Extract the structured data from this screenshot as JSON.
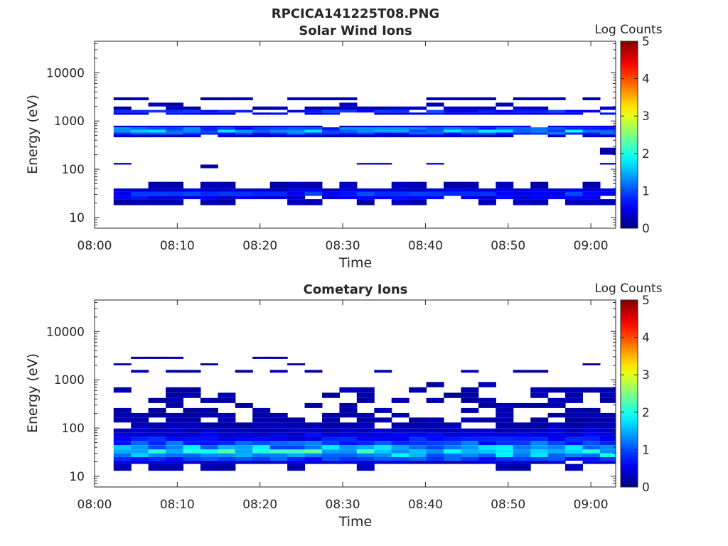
{
  "figure_title": "RPCICA141225T08.PNG",
  "colors": {
    "axis": "#262626",
    "background": "#ffffff",
    "colormap": "jet"
  },
  "chart_data": [
    {
      "type": "heatmap",
      "title": "Solar Wind Ions",
      "xlabel": "Time",
      "ylabel": "Energy (eV)",
      "xtick_labels": [
        "08:00",
        "08:10",
        "08:20",
        "08:30",
        "08:40",
        "08:50",
        "09:00"
      ],
      "xlim": [
        "08:00",
        "09:03"
      ],
      "ytick_labels": [
        "10",
        "100",
        "1000",
        "10000"
      ],
      "ylim": [
        6,
        45000
      ],
      "yscale": "log",
      "colorbar": {
        "label": "Log Counts",
        "ticks": [
          "0",
          "1",
          "2",
          "3",
          "4",
          "5"
        ],
        "range": [
          0,
          5
        ]
      },
      "time_bins": {
        "start_min": 2.3,
        "step_min": 2.1,
        "count": 29
      },
      "bands": [
        {
          "e_min": 18,
          "e_max": 24,
          "value": 0.25,
          "presence": 0.75
        },
        {
          "e_min": 24,
          "e_max": 28,
          "value": 0.55,
          "presence": 0.95
        },
        {
          "e_min": 28,
          "e_max": 34,
          "value": 0.75,
          "presence": 1.0
        },
        {
          "e_min": 34,
          "e_max": 40,
          "value": 0.45,
          "presence": 0.95
        },
        {
          "e_min": 40,
          "e_max": 55,
          "value": 0.25,
          "presence": 0.55
        },
        {
          "e_min": 105,
          "e_max": 125,
          "value": 0.25,
          "presence": 0.15
        },
        {
          "e_min": 125,
          "e_max": 135,
          "value": 0.3,
          "presence": 0.12
        },
        {
          "e_min": 200,
          "e_max": 280,
          "value": 0.3,
          "presence": 0.04
        },
        {
          "e_min": 460,
          "e_max": 520,
          "value": 0.35,
          "presence": 0.85
        },
        {
          "e_min": 520,
          "e_max": 580,
          "value": 0.9,
          "presence": 1.0
        },
        {
          "e_min": 580,
          "e_max": 660,
          "value": 1.4,
          "presence": 1.0
        },
        {
          "e_min": 660,
          "e_max": 740,
          "value": 1.0,
          "presence": 1.0
        },
        {
          "e_min": 740,
          "e_max": 800,
          "value": 0.45,
          "presence": 0.95
        },
        {
          "e_min": 1350,
          "e_max": 1500,
          "value": 0.55,
          "presence": 0.85
        },
        {
          "e_min": 1500,
          "e_max": 1700,
          "value": 0.75,
          "presence": 0.8
        },
        {
          "e_min": 1700,
          "e_max": 2000,
          "value": 0.3,
          "presence": 0.4
        },
        {
          "e_min": 2000,
          "e_max": 2400,
          "value": 0.25,
          "presence": 0.3
        },
        {
          "e_min": 2700,
          "e_max": 3100,
          "value": 0.25,
          "presence": 0.55
        }
      ]
    },
    {
      "type": "heatmap",
      "title": "Cometary Ions",
      "xlabel": "Time",
      "ylabel": "Energy (eV)",
      "xtick_labels": [
        "08:00",
        "08:10",
        "08:20",
        "08:30",
        "08:40",
        "08:50",
        "09:00"
      ],
      "xlim": [
        "08:00",
        "09:03"
      ],
      "ytick_labels": [
        "10",
        "100",
        "1000",
        "10000"
      ],
      "ylim": [
        6,
        45000
      ],
      "yscale": "log",
      "colorbar": {
        "label": "Log Counts",
        "ticks": [
          "0",
          "1",
          "2",
          "3",
          "4",
          "5"
        ],
        "range": [
          0,
          5
        ]
      },
      "time_bins": {
        "start_min": 2.3,
        "step_min": 2.1,
        "count": 29
      },
      "bands": [
        {
          "e_min": 8,
          "e_max": 13,
          "value": 0.2,
          "presence": 0.05
        },
        {
          "e_min": 13,
          "e_max": 18,
          "value": 0.25,
          "presence": 0.4
        },
        {
          "e_min": 18,
          "e_max": 21,
          "value": 0.35,
          "presence": 0.95
        },
        {
          "e_min": 21,
          "e_max": 25,
          "value": 0.85,
          "presence": 1.0
        },
        {
          "e_min": 25,
          "e_max": 30,
          "value": 1.5,
          "presence": 1.0
        },
        {
          "e_min": 30,
          "e_max": 36,
          "value": 1.8,
          "presence": 1.0
        },
        {
          "e_min": 36,
          "e_max": 44,
          "value": 1.4,
          "presence": 1.0
        },
        {
          "e_min": 44,
          "e_max": 54,
          "value": 0.95,
          "presence": 1.0
        },
        {
          "e_min": 54,
          "e_max": 66,
          "value": 0.65,
          "presence": 1.0
        },
        {
          "e_min": 66,
          "e_max": 80,
          "value": 0.5,
          "presence": 1.0
        },
        {
          "e_min": 80,
          "e_max": 98,
          "value": 0.35,
          "presence": 1.0
        },
        {
          "e_min": 98,
          "e_max": 130,
          "value": 0.25,
          "presence": 0.95
        },
        {
          "e_min": 130,
          "e_max": 165,
          "value": 0.2,
          "presence": 0.75
        },
        {
          "e_min": 165,
          "e_max": 205,
          "value": 0.2,
          "presence": 0.5
        },
        {
          "e_min": 205,
          "e_max": 260,
          "value": 0.2,
          "presence": 0.4
        },
        {
          "e_min": 260,
          "e_max": 330,
          "value": 0.2,
          "presence": 0.35
        },
        {
          "e_min": 330,
          "e_max": 420,
          "value": 0.2,
          "presence": 0.35
        },
        {
          "e_min": 420,
          "e_max": 540,
          "value": 0.2,
          "presence": 0.35
        },
        {
          "e_min": 540,
          "e_max": 700,
          "value": 0.2,
          "presence": 0.4
        },
        {
          "e_min": 700,
          "e_max": 900,
          "value": 0.2,
          "presence": 0.1
        },
        {
          "e_min": 1400,
          "e_max": 1600,
          "value": 0.2,
          "presence": 0.35
        },
        {
          "e_min": 2000,
          "e_max": 2200,
          "value": 0.2,
          "presence": 0.15
        },
        {
          "e_min": 2700,
          "e_max": 3000,
          "value": 0.2,
          "presence": 0.2
        }
      ]
    }
  ]
}
